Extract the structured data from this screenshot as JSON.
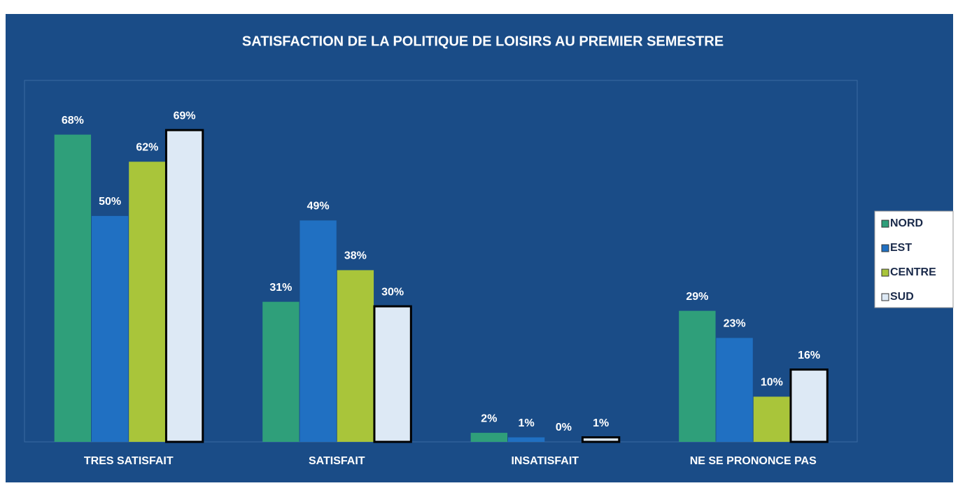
{
  "chart_data": {
    "type": "bar",
    "title": "SATISFACTION DE LA POLITIQUE DE LOISIRS AU PREMIER SEMESTRE",
    "categories": [
      "TRES SATISFAIT",
      "SATISFAIT",
      "INSATISFAIT",
      "NE SE PRONONCE PAS"
    ],
    "series": [
      {
        "name": "NORD",
        "color": "#2f9f7a",
        "values": [
          68,
          31,
          2,
          29
        ],
        "value_labels": [
          "68%",
          "31%",
          "2%",
          "29%"
        ]
      },
      {
        "name": "EST",
        "color": "#2070c2",
        "values": [
          50,
          49,
          1,
          23
        ],
        "value_labels": [
          "50%",
          "49%",
          "1%",
          "23%"
        ]
      },
      {
        "name": "CENTRE",
        "color": "#a9c53a",
        "values": [
          62,
          38,
          0,
          10
        ],
        "value_labels": [
          "62%",
          "38%",
          "0%",
          "10%"
        ]
      },
      {
        "name": "SUD",
        "color": "#dde9f5",
        "values": [
          69,
          30,
          1,
          16
        ],
        "value_labels": [
          "69%",
          "30%",
          "1%",
          "16%"
        ]
      }
    ],
    "ylim": [
      0,
      80
    ],
    "legend": "right"
  }
}
